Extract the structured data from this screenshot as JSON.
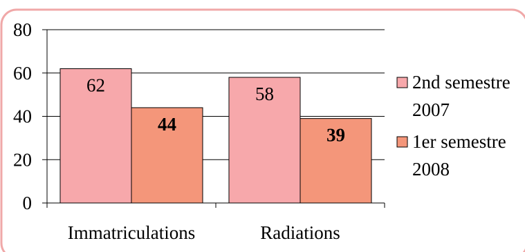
{
  "chart_data": {
    "type": "bar",
    "categories": [
      "Immatriculations",
      "Radiations"
    ],
    "series": [
      {
        "name": "2nd semestre 2007",
        "legend_lines": [
          "2nd semestre",
          "2007"
        ],
        "values": [
          62,
          58
        ],
        "color": "#f7a8ab",
        "label_bold": false
      },
      {
        "name": "1er semestre 2008",
        "legend_lines": [
          "1er semestre",
          "2008"
        ],
        "values": [
          44,
          39
        ],
        "color": "#f4967a",
        "label_bold": true
      }
    ],
    "ylim": [
      0,
      80
    ],
    "yticks": [
      0,
      20,
      40,
      60,
      80
    ],
    "grid": true,
    "legend_position": "right",
    "frame_color": "#f0a8a8"
  }
}
